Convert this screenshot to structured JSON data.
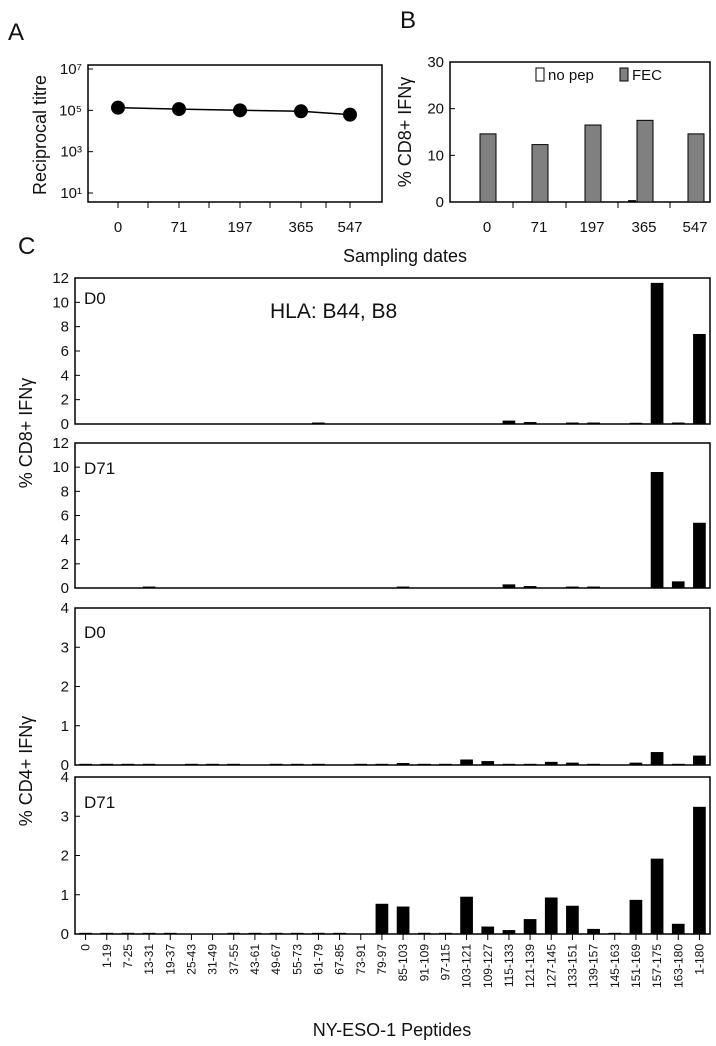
{
  "panel_letters": {
    "a": "A",
    "b": "B",
    "c": "C"
  },
  "colors": {
    "bar_black": "#000000",
    "bar_gray": "#808080",
    "axis": "#000000"
  },
  "shared_labels": {
    "sampling_dates": "Sampling dates",
    "cd8_label": "% CD8+ IFNγ",
    "cd4_label": "% CD4+ IFNγ",
    "peptides_label": "NY-ESO-1 Peptides",
    "hla": "HLA: B44, B8"
  },
  "peptides": [
    "0",
    "1-19",
    "7-25",
    "13-31",
    "19-37",
    "25-43",
    "31-49",
    "37-55",
    "43-61",
    "49-67",
    "55-73",
    "61-79",
    "67-85",
    "73-91",
    "79-97",
    "85-103",
    "91-109",
    "97-115",
    "103-121",
    "109-127",
    "115-133",
    "121-139",
    "127-145",
    "133-151",
    "139-157",
    "145-163",
    "151-169",
    "157-175",
    "163-180",
    "1-180"
  ],
  "chart_data": [
    {
      "type": "line",
      "panel": "A",
      "ylabel": "Reciprocal titre",
      "yscale": "log",
      "ylim": [
        10,
        10000000
      ],
      "yticks": [
        10,
        1000,
        100000,
        10000000
      ],
      "ytick_labels": [
        "10¹",
        "10³",
        "10⁵",
        "10⁷"
      ],
      "categories": [
        "0",
        "71",
        "197",
        "365",
        "547"
      ],
      "values": [
        135000,
        115000,
        100000,
        90000,
        62000
      ]
    },
    {
      "type": "bar",
      "panel": "B",
      "ylabel": "% CD8+ IFNγ",
      "ylim": [
        0,
        30
      ],
      "yticks": [
        0,
        10,
        20,
        30
      ],
      "categories": [
        "0",
        "71",
        "197",
        "365",
        "547"
      ],
      "legend_position": "top-right",
      "series": [
        {
          "name": "no pep",
          "color": "#ffffff",
          "values": [
            0,
            0,
            0,
            0.4,
            0
          ]
        },
        {
          "name": "FEC",
          "color": "#808080",
          "values": [
            14.6,
            12.3,
            16.5,
            17.5,
            14.6
          ]
        }
      ]
    },
    {
      "type": "bar",
      "panel": "C-CD8-D0",
      "label": "D0",
      "ylim": [
        0,
        12
      ],
      "yticks": [
        0,
        2,
        4,
        6,
        8,
        10,
        12
      ],
      "values": [
        0,
        0,
        0,
        0,
        0,
        0,
        0,
        0,
        0,
        0,
        0,
        0.12,
        0,
        0,
        0,
        0,
        0,
        0,
        0,
        0,
        0.28,
        0.16,
        0,
        0.12,
        0.12,
        0,
        0.1,
        11.6,
        0.12,
        7.4
      ]
    },
    {
      "type": "bar",
      "panel": "C-CD8-D71",
      "label": "D71",
      "ylim": [
        0,
        12
      ],
      "yticks": [
        0,
        2,
        4,
        6,
        8,
        10,
        12
      ],
      "values": [
        0,
        0,
        0,
        0.12,
        0,
        0,
        0,
        0,
        0,
        0,
        0,
        0,
        0,
        0,
        0,
        0.12,
        0,
        0,
        0,
        0,
        0.3,
        0.16,
        0,
        0.12,
        0.12,
        0,
        0,
        9.6,
        0.55,
        5.4
      ]
    },
    {
      "type": "bar",
      "panel": "C-CD4-D0",
      "label": "D0",
      "ylim": [
        0,
        4
      ],
      "yticks": [
        0,
        1,
        2,
        3,
        4
      ],
      "values": [
        0.03,
        0.03,
        0.03,
        0.03,
        0,
        0.03,
        0.03,
        0.03,
        0,
        0.03,
        0.03,
        0.03,
        0,
        0.03,
        0.03,
        0.05,
        0.03,
        0.03,
        0.14,
        0.1,
        0.03,
        0.03,
        0.08,
        0.06,
        0.03,
        0,
        0.06,
        0.33,
        0.03,
        0.24
      ]
    },
    {
      "type": "bar",
      "panel": "C-CD4-D71",
      "label": "D71",
      "ylim": [
        0,
        4
      ],
      "yticks": [
        0,
        1,
        2,
        3,
        4
      ],
      "values": [
        0.03,
        0.03,
        0.03,
        0.03,
        0.03,
        0,
        0,
        0.03,
        0.03,
        0.03,
        0.03,
        0.03,
        0.03,
        0,
        0.77,
        0.7,
        0.03,
        0.03,
        0.95,
        0.19,
        0.1,
        0.38,
        0.93,
        0.72,
        0.13,
        0.03,
        0.87,
        1.92,
        0.26,
        3.24
      ]
    }
  ]
}
